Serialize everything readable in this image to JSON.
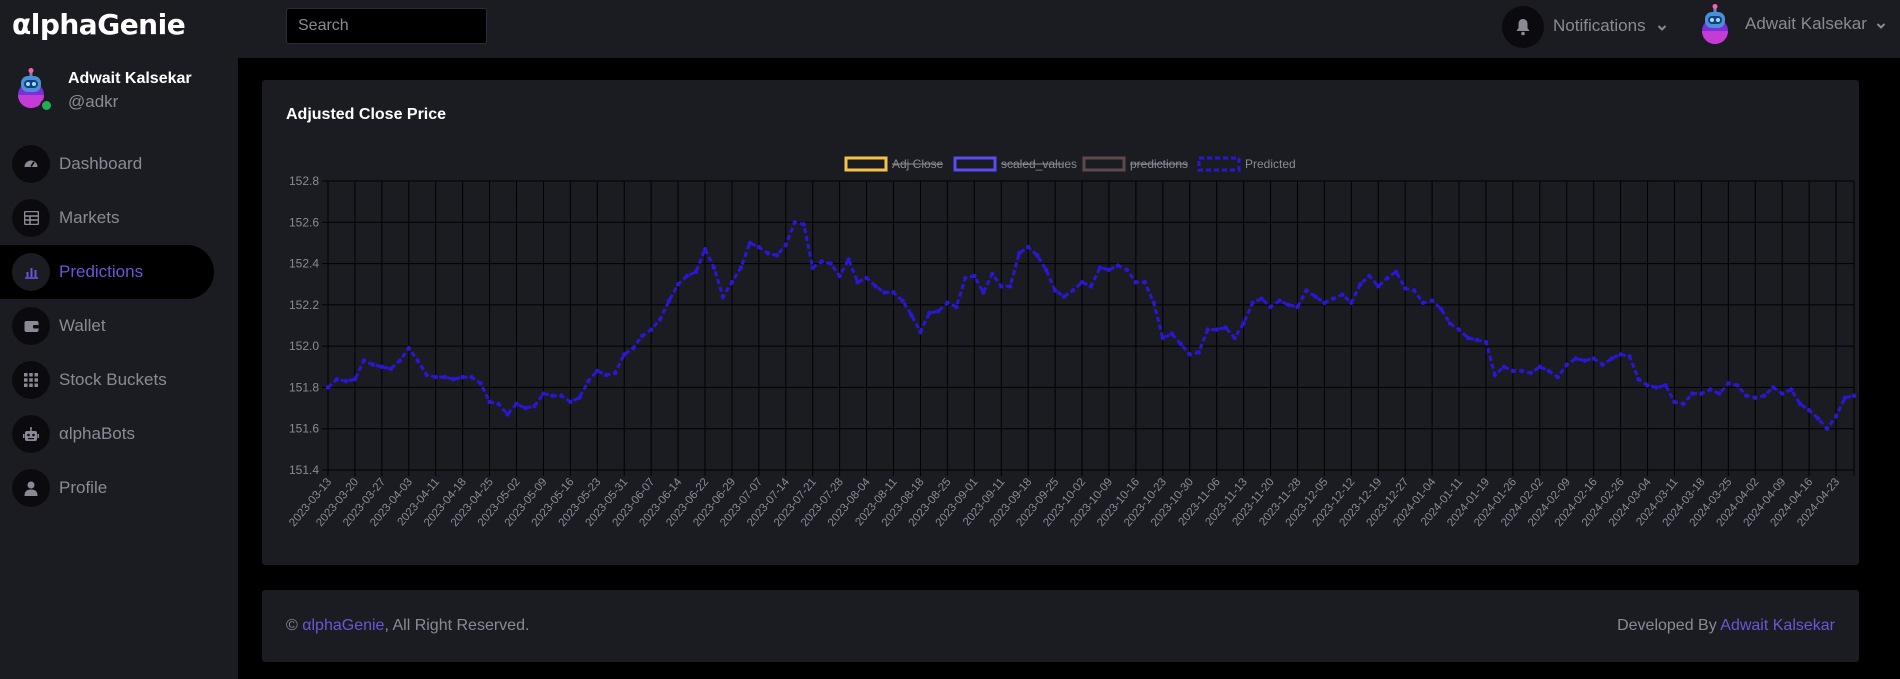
{
  "app": {
    "logo": "αlphaGenie"
  },
  "search": {
    "placeholder": "Search"
  },
  "header": {
    "notifications_label": "Notifications",
    "user_name": "Adwait Kalsekar"
  },
  "profile": {
    "name": "Adwait Kalsekar",
    "handle": "@adkr"
  },
  "sidebar": {
    "items": [
      {
        "label": "Dashboard",
        "icon": "dashboard-icon"
      },
      {
        "label": "Markets",
        "icon": "table-icon"
      },
      {
        "label": "Predictions",
        "icon": "chart-icon",
        "active": true
      },
      {
        "label": "Wallet",
        "icon": "wallet-icon"
      },
      {
        "label": "Stock Buckets",
        "icon": "grid-icon"
      },
      {
        "label": "αlphaBots",
        "icon": "robot-icon"
      },
      {
        "label": "Profile",
        "icon": "person-icon"
      }
    ]
  },
  "main": {
    "card_title": "Adjusted Close Price"
  },
  "footer": {
    "copyright_symbol": "©",
    "brand": "αlphaGenie",
    "rights": ", All Right Reserved.",
    "developed_by": "Developed By",
    "developer": "Adwait Kalsekar"
  },
  "colors": {
    "accent": "#6a56d6",
    "background": "#000000",
    "panel": "#1b1c22",
    "text_muted": "#8a8a96",
    "series_adj_close": "#f4c24a",
    "series_scaled": "#5a4cf0",
    "series_predictions": "#5c4a4a",
    "series_predicted": "#2a17d6"
  },
  "chart_data": {
    "type": "line",
    "title": "",
    "ylim": [
      151.4,
      152.8
    ],
    "y_ticks": [
      "152.8",
      "152.6",
      "152.4",
      "152.2",
      "152.0",
      "151.8",
      "151.6",
      "151.4"
    ],
    "x_tick_labels": [
      "2023-03-13",
      "2023-03-20",
      "2023-03-27",
      "2023-04-03",
      "2023-04-11",
      "2023-04-18",
      "2023-04-25",
      "2023-05-02",
      "2023-05-09",
      "2023-05-16",
      "2023-05-23",
      "2023-05-31",
      "2023-06-07",
      "2023-06-14",
      "2023-06-22",
      "2023-06-29",
      "2023-07-07",
      "2023-07-14",
      "2023-07-21",
      "2023-07-28",
      "2023-08-04",
      "2023-08-11",
      "2023-08-18",
      "2023-08-25",
      "2023-09-01",
      "2023-09-11",
      "2023-09-18",
      "2023-09-25",
      "2023-10-02",
      "2023-10-09",
      "2023-10-16",
      "2023-10-23",
      "2023-10-30",
      "2023-11-06",
      "2023-11-13",
      "2023-11-20",
      "2023-11-28",
      "2023-12-05",
      "2023-12-12",
      "2023-12-19",
      "2023-12-27",
      "2024-01-04",
      "2024-01-11",
      "2024-01-19",
      "2024-01-26",
      "2024-02-02",
      "2024-02-09",
      "2024-02-16",
      "2024-02-26",
      "2024-03-04",
      "2024-03-11",
      "2024-03-18",
      "2024-03-25",
      "2024-04-02",
      "2024-04-09",
      "2024-04-16",
      "2024-04-23"
    ],
    "grid": true,
    "legend_position": "top",
    "series": [
      {
        "name": "Adj Close",
        "hidden": true,
        "values": []
      },
      {
        "name": "scaled_values",
        "hidden": true,
        "values": []
      },
      {
        "name": "predictions",
        "hidden": true,
        "values": []
      },
      {
        "name": "Predicted",
        "hidden": false,
        "values": [
          151.8,
          151.84,
          151.83,
          151.84,
          151.93,
          151.91,
          151.9,
          151.89,
          151.93,
          151.99,
          151.93,
          151.86,
          151.85,
          151.85,
          151.84,
          151.85,
          151.85,
          151.82,
          151.73,
          151.72,
          151.67,
          151.72,
          151.7,
          151.71,
          151.77,
          151.76,
          151.76,
          151.73,
          151.75,
          151.83,
          151.88,
          151.86,
          151.87,
          151.96,
          151.99,
          152.05,
          152.08,
          152.13,
          152.22,
          152.3,
          152.34,
          152.36,
          152.47,
          152.38,
          152.24,
          152.31,
          152.38,
          152.5,
          152.48,
          152.45,
          152.44,
          152.49,
          152.6,
          152.59,
          152.38,
          152.41,
          152.4,
          152.34,
          152.42,
          152.31,
          152.33,
          152.29,
          152.26,
          152.26,
          152.22,
          152.15,
          152.07,
          152.16,
          152.17,
          152.21,
          152.19,
          152.33,
          152.34,
          152.26,
          152.35,
          152.29,
          152.29,
          152.45,
          152.48,
          152.44,
          152.37,
          152.27,
          152.24,
          152.27,
          152.31,
          152.29,
          152.38,
          152.37,
          152.39,
          152.37,
          152.31,
          152.31,
          152.21,
          152.04,
          152.06,
          152.01,
          151.96,
          151.97,
          152.08,
          152.08,
          152.09,
          152.04,
          152.11,
          152.21,
          152.23,
          152.19,
          152.22,
          152.2,
          152.19,
          152.27,
          152.24,
          152.21,
          152.23,
          152.25,
          152.21,
          152.3,
          152.34,
          152.29,
          152.33,
          152.36,
          152.28,
          152.27,
          152.21,
          152.22,
          152.18,
          152.11,
          152.08,
          152.04,
          152.03,
          152.02,
          151.86,
          151.9,
          151.88,
          151.88,
          151.87,
          151.9,
          151.88,
          151.85,
          151.91,
          151.94,
          151.93,
          151.94,
          151.91,
          151.94,
          151.96,
          151.95,
          151.84,
          151.81,
          151.8,
          151.81,
          151.73,
          151.72,
          151.77,
          151.77,
          151.79,
          151.77,
          151.82,
          151.81,
          151.76,
          151.75,
          151.76,
          151.8,
          151.77,
          151.79,
          151.72,
          151.69,
          151.65,
          151.6,
          151.66,
          151.75,
          151.76
        ]
      }
    ]
  }
}
